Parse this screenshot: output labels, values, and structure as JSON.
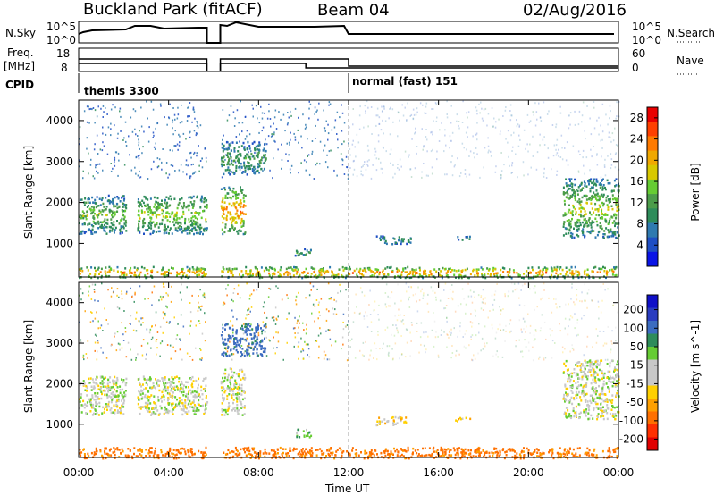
{
  "header": {
    "radar": "Buckland Park (fitACF)",
    "beam": "Beam 04",
    "date": "02/Aug/2016"
  },
  "top_panels": {
    "nsky_label": "N.Sky",
    "nsky_ticks": [
      "10^5",
      "10^0"
    ],
    "nsearch_label": "N.Search",
    "nsearch_ticks": [
      "10^5",
      "10^0"
    ],
    "freq_label_1": "Freq.",
    "freq_label_2": "[MHz]",
    "freq_ticks": [
      "18",
      "8"
    ],
    "nave_label": "Nave",
    "nave_ticks": [
      "60",
      "0"
    ],
    "cpid_label": "CPID",
    "cpid_modes": [
      "themis 3300",
      "normal (fast) 151"
    ]
  },
  "colors": {
    "power_scale": [
      "#0a14e6",
      "#1f4fc4",
      "#2f7ab0",
      "#2e8c5a",
      "#4c9c4a",
      "#66cc33",
      "#d8c800",
      "#f0a800",
      "#ff7a00",
      "#ff4000",
      "#e80000"
    ],
    "velocity_scale": [
      "#1010c8",
      "#2a3cc0",
      "#3c6cc0",
      "#2e8c5a",
      "#66cc33",
      "#c8c8c8",
      "#c8c8c8",
      "#ffd000",
      "#ffa000",
      "#ff7000",
      "#ff3000",
      "#e00000"
    ]
  },
  "chart_data": [
    {
      "type": "heatmap",
      "panel": "power",
      "ylabel": "Slant Range [km]",
      "yticks": [
        1000,
        2000,
        3000,
        4000
      ],
      "ylim": [
        180,
        4500
      ],
      "xlim": [
        0,
        24
      ],
      "colorbar_label": "Power [dB]",
      "colorbar_ticks": [
        4,
        8,
        12,
        16,
        20,
        24,
        28
      ],
      "colorbar_range": [
        0,
        30
      ],
      "features": [
        {
          "t0": 0.0,
          "t1": 2.1,
          "r0": 1250,
          "r1": 2200,
          "dB": 12
        },
        {
          "t0": 2.6,
          "t1": 5.7,
          "r0": 1250,
          "r1": 2200,
          "dB": 14
        },
        {
          "t0": 6.3,
          "t1": 7.4,
          "r0": 1250,
          "r1": 2400,
          "dB": 20
        },
        {
          "t0": 6.3,
          "t1": 8.3,
          "r0": 2700,
          "r1": 3500,
          "dB": 10
        },
        {
          "t0": 9.5,
          "t1": 10.3,
          "r0": 700,
          "r1": 900,
          "dB": 10
        },
        {
          "t0": 13.2,
          "t1": 14.8,
          "r0": 1000,
          "r1": 1200,
          "dB": 8
        },
        {
          "t0": 16.7,
          "t1": 17.4,
          "r0": 1100,
          "r1": 1200,
          "dB": 10
        },
        {
          "t0": 21.5,
          "t1": 24.0,
          "r0": 1150,
          "r1": 2600,
          "dB": 14
        },
        {
          "t0": 0.0,
          "t1": 24.0,
          "r0": 180,
          "r1": 450,
          "dB": 20
        }
      ]
    },
    {
      "type": "heatmap",
      "panel": "velocity",
      "ylabel": "Slant Range [km]",
      "yticks": [
        1000,
        2000,
        3000,
        4000
      ],
      "ylim": [
        180,
        4500
      ],
      "xlim": [
        0,
        24
      ],
      "xticks": [
        "00:00",
        "04:00",
        "08:00",
        "12:00",
        "16:00",
        "20:00",
        "00:00"
      ],
      "xlabel": "Time UT",
      "colorbar_label": "Velocity [m s^-1]",
      "colorbar_ticks": [
        "200",
        "100",
        "50",
        "15",
        "-15",
        "-50",
        "-100",
        "-200"
      ],
      "features": [
        {
          "t0": 0.0,
          "t1": 2.1,
          "r0": 1250,
          "r1": 2200,
          "v": 0
        },
        {
          "t0": 2.6,
          "t1": 5.7,
          "r0": 1250,
          "r1": 2200,
          "v": 0
        },
        {
          "t0": 6.3,
          "t1": 7.4,
          "r0": 1250,
          "r1": 2400,
          "v": 0
        },
        {
          "t0": 6.3,
          "t1": 8.3,
          "r0": 2700,
          "r1": 3500,
          "v": 120
        },
        {
          "t0": 9.5,
          "t1": 10.3,
          "r0": 700,
          "r1": 900,
          "v": 40
        },
        {
          "t0": 13.2,
          "t1": 14.8,
          "r0": 1000,
          "r1": 1200,
          "v": -30
        },
        {
          "t0": 16.7,
          "t1": 17.4,
          "r0": 1100,
          "r1": 1200,
          "v": -30
        },
        {
          "t0": 21.5,
          "t1": 24.0,
          "r0": 1150,
          "r1": 2600,
          "v": 0
        },
        {
          "t0": 0.0,
          "t1": 24.0,
          "r0": 180,
          "r1": 450,
          "v": -120
        }
      ]
    }
  ]
}
